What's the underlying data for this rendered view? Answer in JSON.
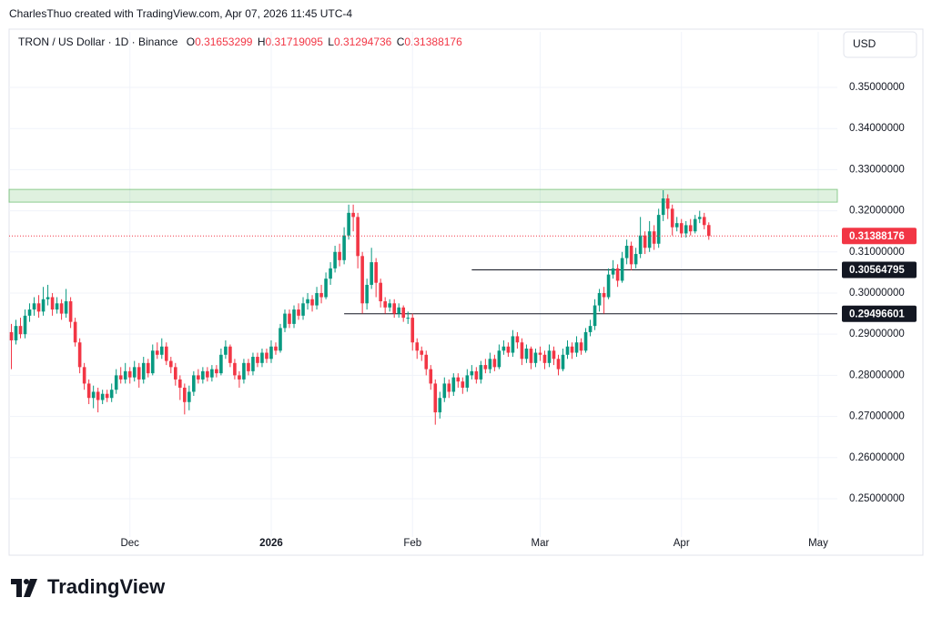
{
  "chart_data": {
    "type": "candlestick",
    "caption": "CharlesThuo created with TradingView.com, Apr 07, 2026 11:45 UTC-4",
    "title": "TRON / US Dollar · 1D · Binance",
    "ohlc_letters": [
      "O",
      "H",
      "L",
      "C"
    ],
    "currency": "USD",
    "brand": "TradingView",
    "up_color": "#089981",
    "down_color": "#f23645",
    "grid": true,
    "xlim": [
      -0.5,
      181.2
    ],
    "xticks": [
      {
        "value": 26,
        "label": "Dec"
      },
      {
        "value": 57,
        "label": "2026"
      },
      {
        "value": 88,
        "label": "Feb"
      },
      {
        "value": 116,
        "label": "Mar"
      },
      {
        "value": 147,
        "label": "Apr"
      },
      {
        "value": 177,
        "label": "May"
      }
    ],
    "ylim": [
      0.2407,
      0.3635
    ],
    "yticks": [
      {
        "value": 0.25,
        "label": "0.25000000"
      },
      {
        "value": 0.26,
        "label": "0.26000000"
      },
      {
        "value": 0.27,
        "label": "0.27000000"
      },
      {
        "value": 0.28,
        "label": "0.28000000"
      },
      {
        "value": 0.29,
        "label": "0.29000000"
      },
      {
        "value": 0.3,
        "label": "0.30000000"
      },
      {
        "value": 0.31,
        "label": "0.31000000"
      },
      {
        "value": 0.32,
        "label": "0.32000000"
      },
      {
        "value": 0.33,
        "label": "0.33000000"
      },
      {
        "value": 0.34,
        "label": "0.34000000"
      },
      {
        "value": 0.35,
        "label": "0.35000000"
      }
    ],
    "zones": [
      {
        "from": 0.3221,
        "to": 0.3252,
        "color": "#4caf50"
      }
    ],
    "hlines": [
      {
        "value": 0.30564795,
        "x_start": 101
      },
      {
        "value": 0.29496601,
        "x_start": 73
      }
    ],
    "open": [
      0.2905,
      0.2885,
      0.292,
      0.29,
      0.2945,
      0.296,
      0.2975,
      0.2955,
      0.2985,
      0.299,
      0.296,
      0.2975,
      0.295,
      0.298,
      0.293,
      0.288,
      0.282,
      0.278,
      0.2745,
      0.276,
      0.274,
      0.2755,
      0.2745,
      0.2765,
      0.28,
      0.279,
      0.281,
      0.2795,
      0.282,
      0.279,
      0.283,
      0.2805,
      0.286,
      0.285,
      0.287,
      0.2835,
      0.282,
      0.279,
      0.277,
      0.2735,
      0.276,
      0.28,
      0.279,
      0.281,
      0.2795,
      0.2815,
      0.2805,
      0.285,
      0.287,
      0.283,
      0.28,
      0.279,
      0.283,
      0.281,
      0.2845,
      0.283,
      0.2855,
      0.284,
      0.287,
      0.286,
      0.2915,
      0.295,
      0.2925,
      0.296,
      0.2945,
      0.2975,
      0.2985,
      0.297,
      0.3,
      0.299,
      0.3035,
      0.306,
      0.31,
      0.308,
      0.314,
      0.3195,
      0.3185,
      0.309,
      0.2975,
      0.302,
      0.3075,
      0.3025,
      0.298,
      0.2965,
      0.2975,
      0.295,
      0.2965,
      0.294,
      0.294,
      0.288,
      0.286,
      0.285,
      0.2815,
      0.278,
      0.271,
      0.2745,
      0.278,
      0.276,
      0.2795,
      0.2785,
      0.277,
      0.28,
      0.281,
      0.279,
      0.2825,
      0.2815,
      0.284,
      0.282,
      0.286,
      0.287,
      0.2855,
      0.2895,
      0.288,
      0.284,
      0.2865,
      0.283,
      0.2855,
      0.285,
      0.283,
      0.286,
      0.284,
      0.2815,
      0.285,
      0.287,
      0.2855,
      0.288,
      0.286,
      0.2905,
      0.292,
      0.297,
      0.3,
      0.299,
      0.3045,
      0.306,
      0.303,
      0.3085,
      0.3115,
      0.307,
      0.3095,
      0.314,
      0.311,
      0.315,
      0.312,
      0.319,
      0.323,
      0.3205,
      0.316,
      0.317,
      0.3145,
      0.3165,
      0.315,
      0.318,
      0.3185,
      0.31653299
    ],
    "high": [
      0.2925,
      0.2935,
      0.294,
      0.296,
      0.2975,
      0.299,
      0.2995,
      0.3015,
      0.302,
      0.3,
      0.299,
      0.2985,
      0.301,
      0.299,
      0.294,
      0.289,
      0.283,
      0.279,
      0.2775,
      0.277,
      0.2765,
      0.2765,
      0.278,
      0.2815,
      0.282,
      0.283,
      0.282,
      0.2835,
      0.283,
      0.2845,
      0.284,
      0.2875,
      0.288,
      0.289,
      0.288,
      0.2845,
      0.283,
      0.28,
      0.278,
      0.2775,
      0.281,
      0.2815,
      0.282,
      0.282,
      0.2825,
      0.2825,
      0.2865,
      0.2885,
      0.2875,
      0.284,
      0.281,
      0.284,
      0.284,
      0.2855,
      0.2855,
      0.2865,
      0.2865,
      0.2885,
      0.288,
      0.2925,
      0.296,
      0.296,
      0.297,
      0.2975,
      0.299,
      0.3,
      0.2995,
      0.3015,
      0.302,
      0.305,
      0.3075,
      0.3115,
      0.312,
      0.316,
      0.3215,
      0.3215,
      0.3195,
      0.31,
      0.3035,
      0.311,
      0.3085,
      0.3035,
      0.299,
      0.2985,
      0.2985,
      0.2975,
      0.297,
      0.2955,
      0.295,
      0.289,
      0.287,
      0.286,
      0.2825,
      0.279,
      0.276,
      0.2795,
      0.279,
      0.2805,
      0.2805,
      0.2795,
      0.2815,
      0.2825,
      0.282,
      0.2835,
      0.284,
      0.2855,
      0.285,
      0.2875,
      0.2885,
      0.288,
      0.291,
      0.2905,
      0.289,
      0.2875,
      0.287,
      0.2865,
      0.287,
      0.286,
      0.2875,
      0.287,
      0.285,
      0.2865,
      0.2885,
      0.288,
      0.2895,
      0.289,
      0.2915,
      0.2935,
      0.2985,
      0.301,
      0.3015,
      0.306,
      0.308,
      0.307,
      0.31,
      0.313,
      0.3125,
      0.311,
      0.3185,
      0.315,
      0.3175,
      0.3165,
      0.3205,
      0.325,
      0.324,
      0.3215,
      0.3185,
      0.318,
      0.3175,
      0.318,
      0.319,
      0.32,
      0.3195,
      0.31719095
    ],
    "low": [
      0.2815,
      0.2875,
      0.289,
      0.289,
      0.293,
      0.2945,
      0.294,
      0.2945,
      0.297,
      0.2945,
      0.295,
      0.2935,
      0.294,
      0.2915,
      0.287,
      0.2805,
      0.2765,
      0.273,
      0.272,
      0.271,
      0.273,
      0.2735,
      0.2735,
      0.2755,
      0.278,
      0.278,
      0.278,
      0.2785,
      0.277,
      0.278,
      0.2795,
      0.28,
      0.284,
      0.284,
      0.2825,
      0.2805,
      0.2775,
      0.274,
      0.2705,
      0.2715,
      0.275,
      0.278,
      0.278,
      0.2785,
      0.2785,
      0.2795,
      0.28,
      0.284,
      0.282,
      0.279,
      0.277,
      0.278,
      0.28,
      0.28,
      0.282,
      0.282,
      0.283,
      0.283,
      0.285,
      0.2855,
      0.2905,
      0.2915,
      0.2915,
      0.2935,
      0.2935,
      0.296,
      0.2955,
      0.296,
      0.2975,
      0.2985,
      0.302,
      0.305,
      0.3065,
      0.307,
      0.313,
      0.315,
      0.306,
      0.295,
      0.296,
      0.301,
      0.299,
      0.2965,
      0.295,
      0.2955,
      0.294,
      0.294,
      0.293,
      0.2925,
      0.286,
      0.284,
      0.2835,
      0.28,
      0.2765,
      0.268,
      0.2695,
      0.2735,
      0.2745,
      0.275,
      0.277,
      0.2755,
      0.276,
      0.279,
      0.278,
      0.278,
      0.2805,
      0.2805,
      0.281,
      0.2815,
      0.285,
      0.2845,
      0.2845,
      0.2865,
      0.2825,
      0.283,
      0.2815,
      0.282,
      0.2835,
      0.2815,
      0.282,
      0.2825,
      0.28,
      0.281,
      0.284,
      0.284,
      0.2845,
      0.285,
      0.2855,
      0.2895,
      0.291,
      0.2955,
      0.295,
      0.2985,
      0.3035,
      0.3015,
      0.3025,
      0.307,
      0.3055,
      0.306,
      0.3085,
      0.3095,
      0.31,
      0.3105,
      0.311,
      0.3175,
      0.318,
      0.314,
      0.315,
      0.3135,
      0.3135,
      0.314,
      0.3145,
      0.317,
      0.3155,
      0.31294736
    ],
    "close": [
      0.2885,
      0.292,
      0.29,
      0.2945,
      0.296,
      0.2975,
      0.2955,
      0.2985,
      0.299,
      0.296,
      0.2975,
      0.295,
      0.298,
      0.293,
      0.288,
      0.282,
      0.278,
      0.2745,
      0.276,
      0.274,
      0.2755,
      0.2745,
      0.2765,
      0.28,
      0.279,
      0.281,
      0.2795,
      0.282,
      0.279,
      0.283,
      0.2805,
      0.286,
      0.285,
      0.287,
      0.2835,
      0.282,
      0.279,
      0.277,
      0.2735,
      0.276,
      0.28,
      0.279,
      0.281,
      0.2795,
      0.2815,
      0.2805,
      0.285,
      0.287,
      0.283,
      0.28,
      0.279,
      0.283,
      0.281,
      0.2845,
      0.283,
      0.2855,
      0.284,
      0.287,
      0.286,
      0.2915,
      0.295,
      0.2925,
      0.296,
      0.2945,
      0.2975,
      0.2985,
      0.297,
      0.3,
      0.299,
      0.3035,
      0.306,
      0.31,
      0.308,
      0.314,
      0.3195,
      0.3185,
      0.309,
      0.2975,
      0.302,
      0.3075,
      0.3025,
      0.298,
      0.2965,
      0.2975,
      0.295,
      0.2965,
      0.294,
      0.294,
      0.288,
      0.286,
      0.285,
      0.2815,
      0.278,
      0.271,
      0.2745,
      0.278,
      0.276,
      0.2795,
      0.2785,
      0.277,
      0.28,
      0.281,
      0.279,
      0.2825,
      0.2815,
      0.284,
      0.282,
      0.286,
      0.287,
      0.2855,
      0.2895,
      0.288,
      0.284,
      0.2865,
      0.283,
      0.2855,
      0.285,
      0.283,
      0.286,
      0.284,
      0.2815,
      0.285,
      0.287,
      0.2855,
      0.288,
      0.286,
      0.2905,
      0.292,
      0.297,
      0.3,
      0.299,
      0.3045,
      0.306,
      0.303,
      0.3085,
      0.3115,
      0.307,
      0.3095,
      0.314,
      0.311,
      0.315,
      0.312,
      0.319,
      0.323,
      0.3205,
      0.316,
      0.317,
      0.3145,
      0.3165,
      0.315,
      0.318,
      0.3185,
      0.31653299,
      0.31388176
    ]
  }
}
